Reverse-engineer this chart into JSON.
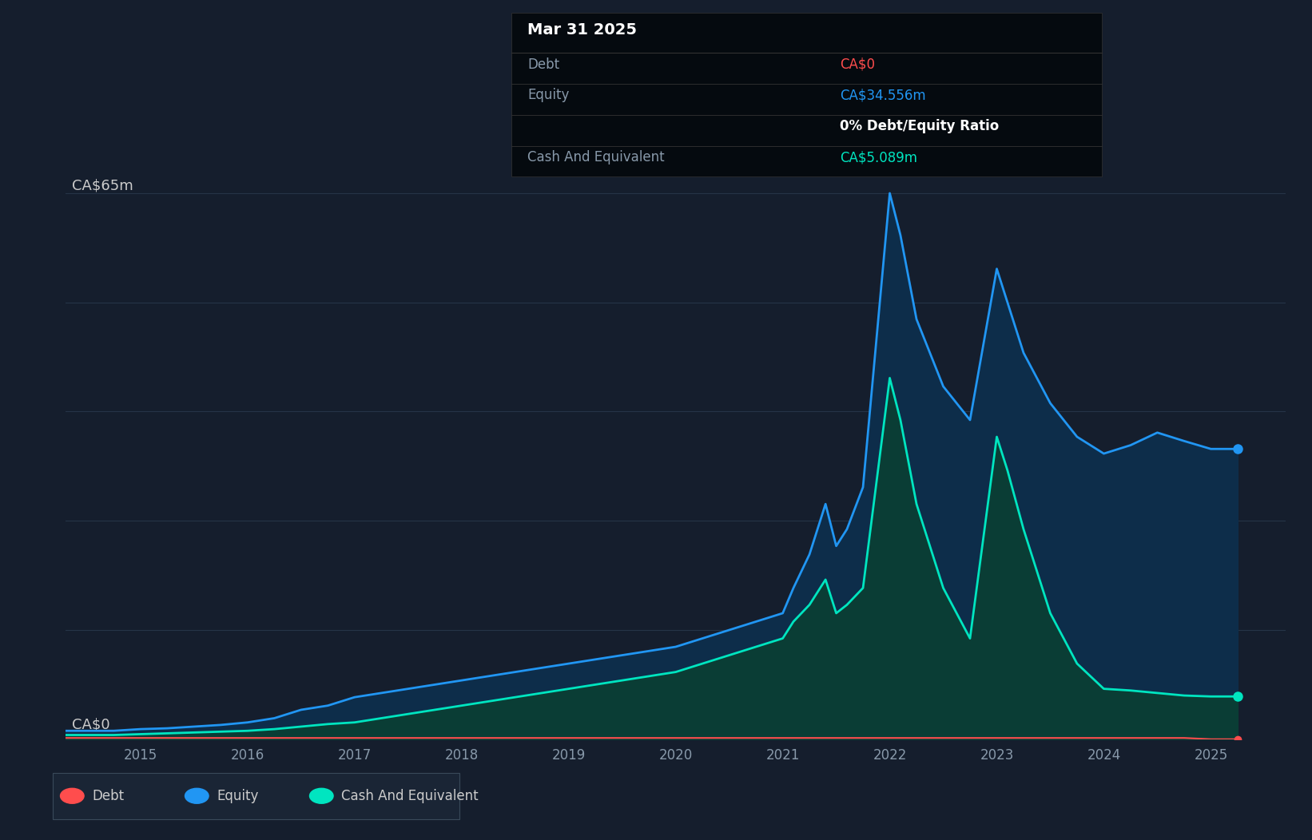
{
  "background_color": "#151e2d",
  "plot_bg_color": "#151e2d",
  "grid_color": "#263447",
  "ylim": [
    0,
    72
  ],
  "xlim": [
    2014.3,
    2025.7
  ],
  "debt_color": "#ff4d4d",
  "equity_color": "#2196f3",
  "cash_color": "#00e5c0",
  "equity_fill_color": "#0d2d4a",
  "cash_fill_color": "#0a3d35",
  "tooltip_bg": "#050a0f",
  "tooltip_date": "Mar 31 2025",
  "tooltip_debt_label": "Debt",
  "tooltip_debt_value": "CA$0",
  "tooltip_debt_color": "#ff4d4d",
  "tooltip_equity_label": "Equity",
  "tooltip_equity_value": "CA$34.556m",
  "tooltip_equity_color": "#2196f3",
  "tooltip_ratio": "0% Debt/Equity Ratio",
  "tooltip_cash_label": "Cash And Equivalent",
  "tooltip_cash_value": "CA$5.089m",
  "tooltip_cash_color": "#00e5c0",
  "legend_items": [
    {
      "label": "Debt",
      "color": "#ff4d4d"
    },
    {
      "label": "Equity",
      "color": "#2196f3"
    },
    {
      "label": "Cash And Equivalent",
      "color": "#00e5c0"
    }
  ],
  "top_label": "CA$65m",
  "bottom_label": "CA$0",
  "years": [
    2014.3,
    2014.5,
    2014.75,
    2015.0,
    2015.25,
    2015.5,
    2015.75,
    2016.0,
    2016.25,
    2016.5,
    2016.75,
    2017.0,
    2017.25,
    2017.5,
    2017.75,
    2018.0,
    2018.25,
    2018.5,
    2018.75,
    2019.0,
    2019.25,
    2019.5,
    2019.75,
    2020.0,
    2020.25,
    2020.5,
    2020.75,
    2021.0,
    2021.1,
    2021.25,
    2021.4,
    2021.5,
    2021.6,
    2021.75,
    2022.0,
    2022.1,
    2022.25,
    2022.5,
    2022.75,
    2023.0,
    2023.1,
    2023.25,
    2023.5,
    2023.75,
    2024.0,
    2024.25,
    2024.5,
    2024.75,
    2025.0,
    2025.25
  ],
  "equity_values": [
    1.0,
    1.0,
    1.0,
    1.2,
    1.3,
    1.5,
    1.7,
    2.0,
    2.5,
    3.5,
    4.0,
    5.0,
    5.5,
    6.0,
    6.5,
    7.0,
    7.5,
    8.0,
    8.5,
    9.0,
    9.5,
    10.0,
    10.5,
    11.0,
    12.0,
    13.0,
    14.0,
    15.0,
    18.0,
    22.0,
    28.0,
    23.0,
    25.0,
    30.0,
    65.0,
    60.0,
    50.0,
    42.0,
    38.0,
    56.0,
    52.0,
    46.0,
    40.0,
    36.0,
    34.0,
    35.0,
    36.5,
    35.5,
    34.556,
    34.556
  ],
  "cash_values": [
    0.5,
    0.5,
    0.5,
    0.6,
    0.7,
    0.8,
    0.9,
    1.0,
    1.2,
    1.5,
    1.8,
    2.0,
    2.5,
    3.0,
    3.5,
    4.0,
    4.5,
    5.0,
    5.5,
    6.0,
    6.5,
    7.0,
    7.5,
    8.0,
    9.0,
    10.0,
    11.0,
    12.0,
    14.0,
    16.0,
    19.0,
    15.0,
    16.0,
    18.0,
    43.0,
    38.0,
    28.0,
    18.0,
    12.0,
    36.0,
    32.0,
    25.0,
    15.0,
    9.0,
    6.0,
    5.8,
    5.5,
    5.2,
    5.089,
    5.089
  ],
  "debt_values": [
    0.15,
    0.15,
    0.15,
    0.15,
    0.15,
    0.15,
    0.15,
    0.15,
    0.15,
    0.15,
    0.15,
    0.15,
    0.15,
    0.15,
    0.15,
    0.15,
    0.15,
    0.15,
    0.15,
    0.15,
    0.15,
    0.15,
    0.15,
    0.15,
    0.15,
    0.15,
    0.15,
    0.15,
    0.15,
    0.15,
    0.15,
    0.15,
    0.15,
    0.15,
    0.15,
    0.15,
    0.15,
    0.15,
    0.15,
    0.15,
    0.15,
    0.15,
    0.15,
    0.15,
    0.15,
    0.15,
    0.15,
    0.15,
    0.0,
    0.0
  ],
  "gridline_y": [
    0,
    13,
    26,
    39,
    52,
    65
  ],
  "xtick_positions": [
    2015,
    2016,
    2017,
    2018,
    2019,
    2020,
    2021,
    2022,
    2023,
    2024,
    2025
  ]
}
